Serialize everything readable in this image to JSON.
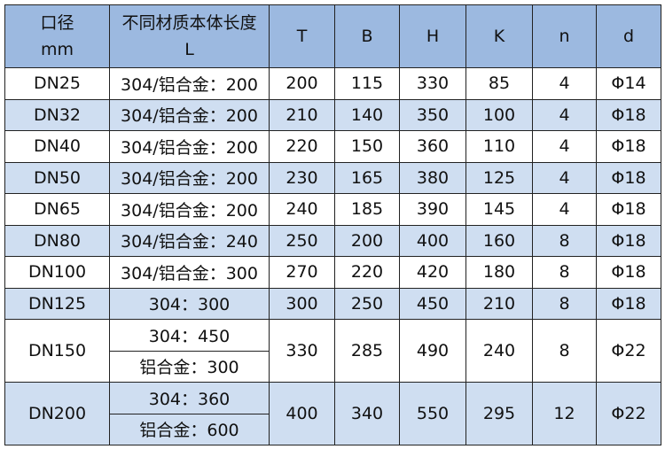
{
  "header": {
    "caliber": [
      "口径",
      "mm"
    ],
    "length": [
      "不同材质本体长度",
      "L"
    ],
    "cols": [
      "T",
      "B",
      "H",
      "K",
      "n",
      "d"
    ]
  },
  "colors": {
    "header_bg": "#9cb9e0",
    "alt_row_bg": "#cfdef1",
    "row_bg": "#ffffff"
  },
  "rows": [
    {
      "dn": "DN25",
      "L": [
        "304/铝合金：200"
      ],
      "T": "200",
      "B": "115",
      "H": "330",
      "K": "85",
      "n": "4",
      "d": "Φ14"
    },
    {
      "dn": "DN32",
      "L": [
        "304/铝合金：200"
      ],
      "T": "210",
      "B": "140",
      "H": "350",
      "K": "100",
      "n": "4",
      "d": "Φ18"
    },
    {
      "dn": "DN40",
      "L": [
        "304/铝合金：200"
      ],
      "T": "220",
      "B": "150",
      "H": "360",
      "K": "110",
      "n": "4",
      "d": "Φ18"
    },
    {
      "dn": "DN50",
      "L": [
        "304/铝合金：200"
      ],
      "T": "230",
      "B": "165",
      "H": "380",
      "K": "125",
      "n": "4",
      "d": "Φ18"
    },
    {
      "dn": "DN65",
      "L": [
        "304/铝合金：200"
      ],
      "T": "240",
      "B": "185",
      "H": "390",
      "K": "145",
      "n": "4",
      "d": "Φ18"
    },
    {
      "dn": "DN80",
      "L": [
        "304/铝合金：240"
      ],
      "T": "250",
      "B": "200",
      "H": "400",
      "K": "160",
      "n": "8",
      "d": "Φ18"
    },
    {
      "dn": "DN100",
      "L": [
        "304/铝合金：300"
      ],
      "T": "270",
      "B": "220",
      "H": "420",
      "K": "180",
      "n": "8",
      "d": "Φ18"
    },
    {
      "dn": "DN125",
      "L": [
        "304：300"
      ],
      "T": "300",
      "B": "250",
      "H": "450",
      "K": "210",
      "n": "8",
      "d": "Φ18"
    },
    {
      "dn": "DN150",
      "L": [
        "304：450",
        "铝合金：300"
      ],
      "T": "330",
      "B": "285",
      "H": "490",
      "K": "240",
      "n": "8",
      "d": "Φ22"
    },
    {
      "dn": "DN200",
      "L": [
        "304：360",
        "铝合金：600"
      ],
      "T": "400",
      "B": "340",
      "H": "550",
      "K": "295",
      "n": "12",
      "d": "Φ22"
    }
  ]
}
